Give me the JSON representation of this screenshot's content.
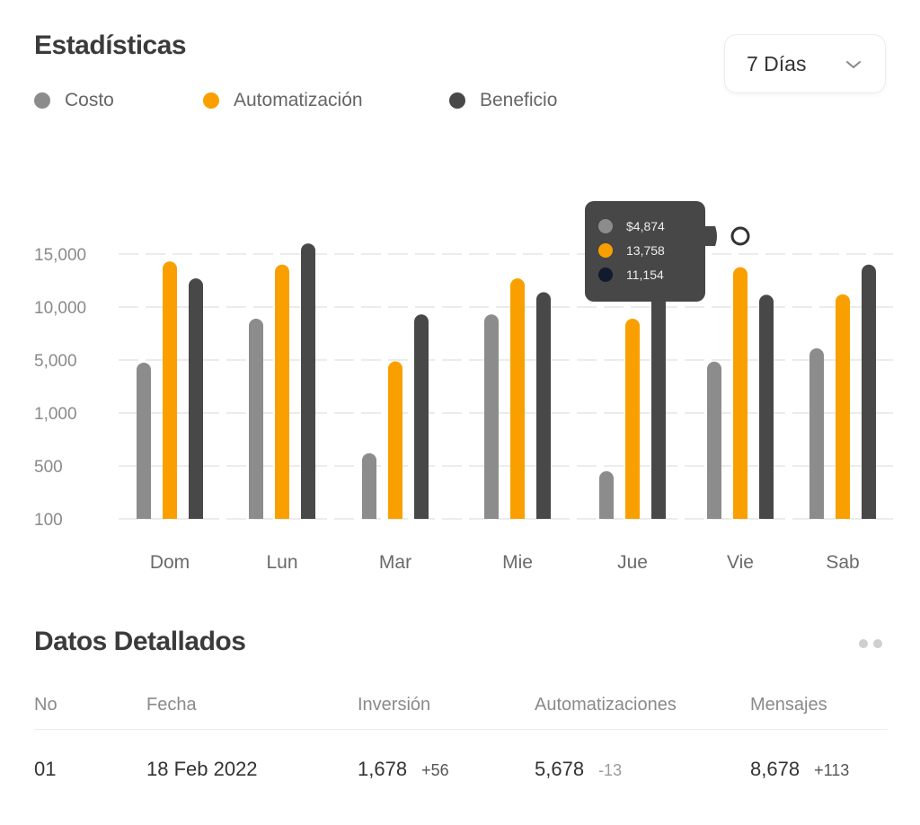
{
  "header": {
    "title": "Estadísticas"
  },
  "range_select": {
    "label": "7 Días"
  },
  "colors": {
    "costo": "#8c8c8c",
    "automatizacion": "#f9a000",
    "beneficio": "#484848",
    "tooltip_bg": "#474747",
    "tooltip_dark_dot": "#121a2e"
  },
  "chart_data": {
    "type": "bar",
    "title": "",
    "categories": [
      "Dom",
      "Lun",
      "Mar",
      "Mie",
      "Jue",
      "Vie",
      "Sab"
    ],
    "y_ticks": [
      "15,000",
      "10,000",
      "5,000",
      "1,000",
      "500",
      "100"
    ],
    "series": [
      {
        "name": "Costo",
        "values": [
          4800,
          8900,
          620,
          9300,
          460,
          4874,
          6100
        ]
      },
      {
        "name": "Automatización",
        "values": [
          14300,
          14000,
          4900,
          12700,
          8900,
          13758,
          11200
        ]
      },
      {
        "name": "Beneficio",
        "values": [
          12700,
          16000,
          9300,
          11400,
          11154,
          11154,
          14000
        ]
      }
    ],
    "legend_position": "top-left",
    "grid": true,
    "tooltip": {
      "category": "Vie",
      "lines": [
        "$4,874",
        "13,758",
        "11,154"
      ]
    }
  },
  "details": {
    "title": "Datos Detallados",
    "columns": [
      "No",
      "Fecha",
      "Inversión",
      "Automatizaciones",
      "Mensajes"
    ],
    "rows": [
      {
        "no": "01",
        "fecha": "18 Feb 2022",
        "inversion": "1,678",
        "inversion_delta": "+56",
        "automatizaciones": "5,678",
        "automatizaciones_delta": "-13",
        "mensajes": "8,678",
        "mensajes_delta": "+113"
      }
    ]
  }
}
